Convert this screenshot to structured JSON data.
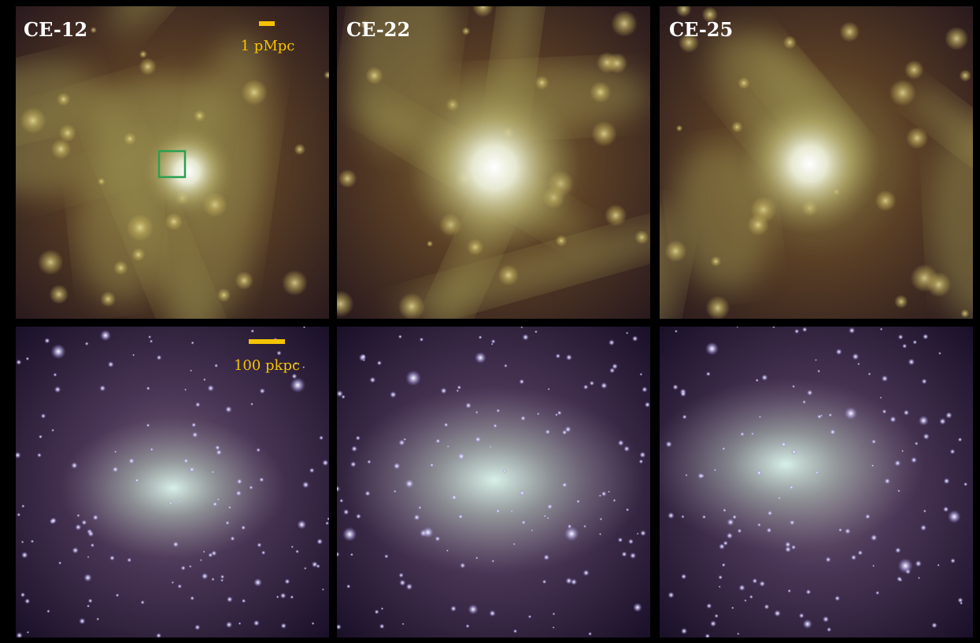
{
  "panels": [
    {
      "label": "CE-12"
    },
    {
      "label": "CE-22"
    },
    {
      "label": "CE-25"
    }
  ],
  "scale_bars": {
    "top": "1 pMpc",
    "bottom": "100 pkpc"
  }
}
